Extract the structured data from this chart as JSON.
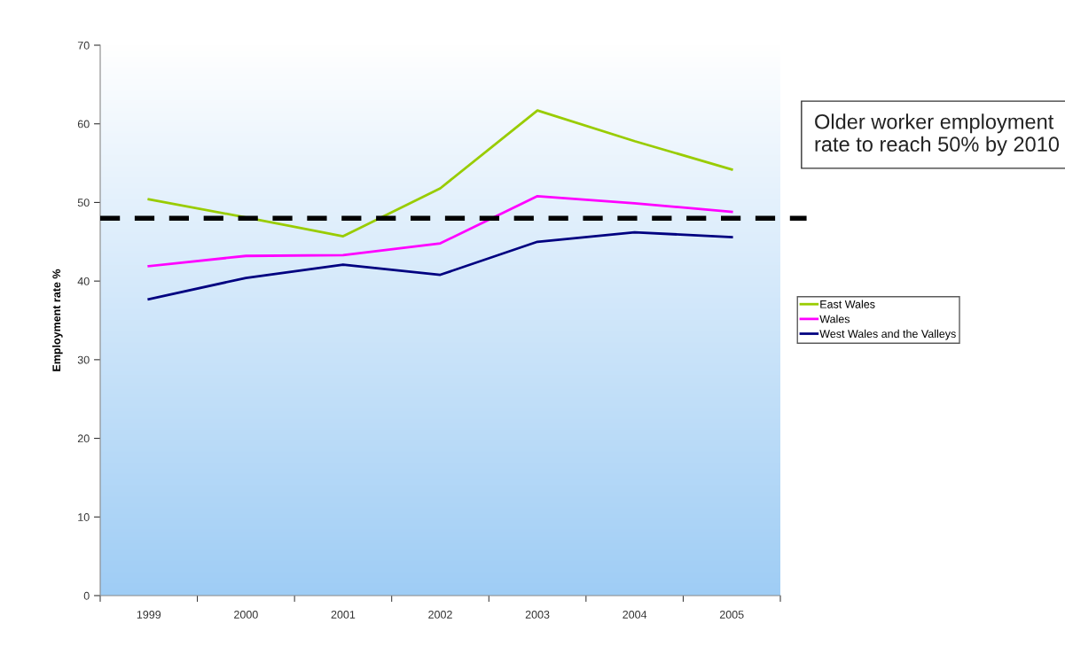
{
  "chart_data": {
    "type": "line",
    "ylabel": "Employment rate %",
    "categories": [
      "1999",
      "2000",
      "2001",
      "2002",
      "2003",
      "2004",
      "2005"
    ],
    "series": [
      {
        "name": "East Wales",
        "color": "#99cc00",
        "values": [
          50.4,
          48.1,
          45.7,
          51.8,
          61.7,
          57.8,
          54.2
        ]
      },
      {
        "name": "Wales",
        "color": "#ff00ff",
        "values": [
          41.9,
          43.2,
          43.3,
          44.8,
          50.8,
          49.9,
          48.8
        ]
      },
      {
        "name": "West Wales and the Valleys",
        "color": "#000080",
        "values": [
          37.7,
          40.4,
          42.1,
          40.8,
          45.0,
          46.2,
          45.6
        ]
      }
    ],
    "ylim": [
      0,
      70
    ],
    "yticks": [
      0,
      10,
      20,
      30,
      40,
      50,
      60,
      70
    ],
    "ref_lines": [
      {
        "axis": "y",
        "value": 48,
        "color": "#000000",
        "line_style": "dashed"
      }
    ],
    "annotations": [
      "Older worker employment rate to reach 50% by 2010"
    ],
    "legend": "right",
    "grid": false,
    "marker": "none",
    "line_style": "solid"
  }
}
